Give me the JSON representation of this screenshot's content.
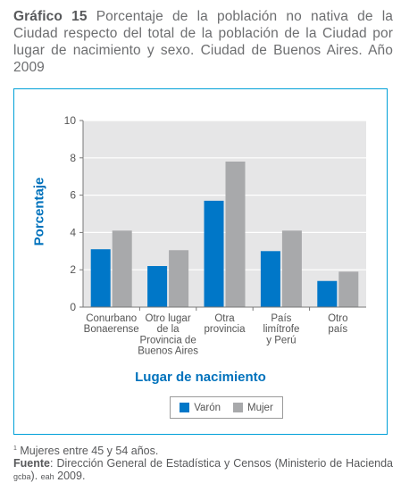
{
  "header": {
    "label": "Gráfico 15",
    "text": "Porcentaje de la población no nativa de la Ciudad respecto del total de la población de la Ciudad por lugar de nacimiento y sexo. Ciudad de Buenos Aires. Año 2009"
  },
  "colors": {
    "varon": "#0077c8",
    "mujer": "#a8a9ab",
    "plot_bg": "#e6e6e7",
    "frame": "#00a0d8",
    "axis_title": "#0072bc"
  },
  "chart_data": {
    "type": "bar",
    "xlabel": "Lugar de nacimiento",
    "ylabel": "Porcentaje",
    "ylim": [
      0,
      10
    ],
    "yticks": [
      "0",
      "2",
      "4",
      "6",
      "8",
      "10"
    ],
    "categories": [
      [
        "Conurbano",
        "Bonaerense"
      ],
      [
        "Otro lugar",
        "de la",
        "Provincia de",
        "Buenos Aires"
      ],
      [
        "Otra",
        "provincia"
      ],
      [
        "País",
        "limítrofe",
        "y Perú"
      ],
      [
        "Otro",
        "país"
      ]
    ],
    "series": [
      {
        "name": "Varón",
        "values": [
          3.1,
          2.2,
          5.7,
          3.0,
          1.4
        ]
      },
      {
        "name": "Mujer",
        "values": [
          4.1,
          3.05,
          7.8,
          4.1,
          1.9
        ]
      }
    ],
    "grid": true,
    "legend": "bottom"
  },
  "footer": {
    "note_mark": "1",
    "note": "Mujeres entre 45 y 54 años.",
    "source_label": "Fuente",
    "source_text": ": Dirección General de Estadística y Censos (Ministerio de Hacienda ",
    "source_gcba": "gcba",
    "source_mid": "). ",
    "source_eah": "eah",
    "source_end": " 2009."
  }
}
